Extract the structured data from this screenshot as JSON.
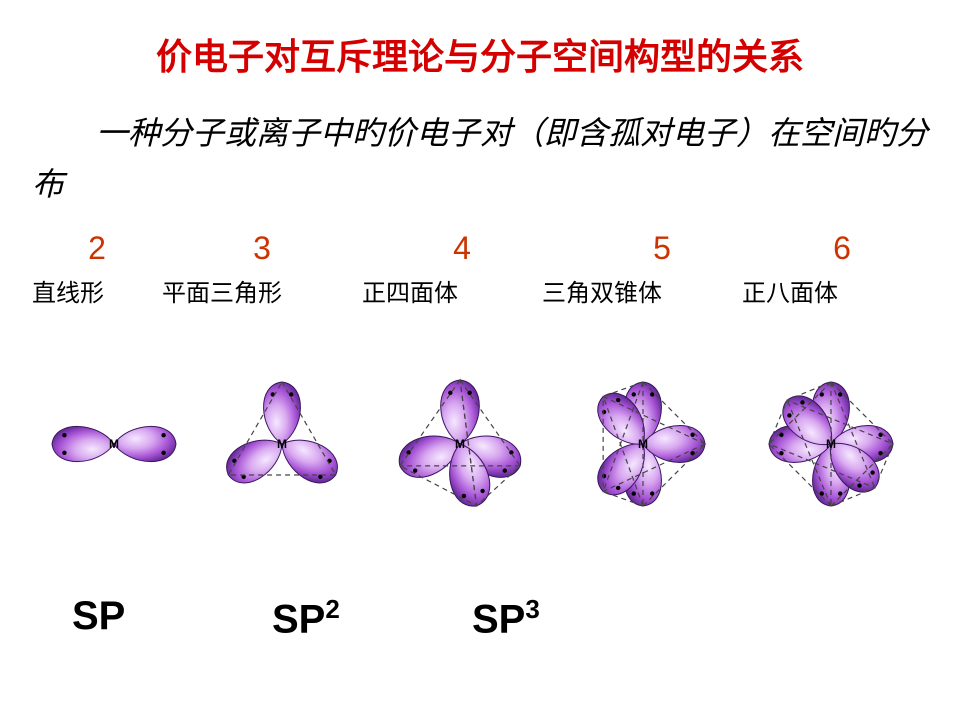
{
  "title": {
    "text": "价电子对互斥理论与分子空间构型的关系",
    "color": "#d40000",
    "fontsize": 36
  },
  "intro": {
    "text": "　　一种分子或离子中旳价电子对（即含孤对电子）在空间旳分布",
    "color": "#000000",
    "fontsize": 32
  },
  "numbers": {
    "values": [
      "2",
      "3",
      "4",
      "5",
      "6"
    ],
    "color": "#cc3300",
    "fontsize": 32,
    "widths": [
      130,
      200,
      200,
      200,
      160
    ]
  },
  "shapes": {
    "values": [
      "直线形",
      "平面三角形",
      "正四面体",
      "三角双锥体",
      "正八面体"
    ],
    "color": "#000000",
    "fontsize": 24,
    "widths": [
      130,
      200,
      180,
      200,
      186
    ]
  },
  "hyb": {
    "values": [
      "SP",
      "SP<sup>2</sup>",
      "SP<sup>3</sup>"
    ],
    "color": "#000000",
    "fontsize": 40,
    "widths": [
      200,
      200,
      200
    ]
  },
  "orbital_style": {
    "fill_light": "#d8a8f0",
    "fill_mid": "#a855d6",
    "fill_dark": "#6b2d9e",
    "highlight": "#f5e8ff",
    "outline": "#3a1560",
    "dot": "#000000",
    "dash": "#444444",
    "center_label": "M"
  },
  "geometries": [
    {
      "name": "linear",
      "lobes": 2
    },
    {
      "name": "trigonal-planar",
      "lobes": 3
    },
    {
      "name": "tetrahedral",
      "lobes": 4
    },
    {
      "name": "trigonal-bipyramidal",
      "lobes": 5
    },
    {
      "name": "octahedral",
      "lobes": 6
    }
  ]
}
